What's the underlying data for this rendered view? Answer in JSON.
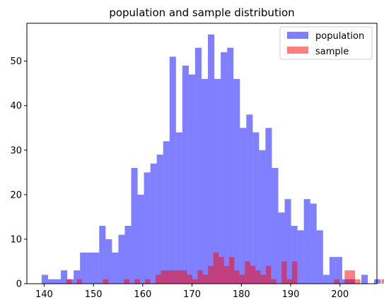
{
  "chart_data": {
    "type": "histogram",
    "title": "population and sample distribution",
    "xlabel": "",
    "ylabel": "",
    "xlim": [
      136.5,
      207.5
    ],
    "ylim": [
      0,
      58.5
    ],
    "xticks": [
      140,
      150,
      160,
      170,
      180,
      190,
      200
    ],
    "yticks": [
      0,
      10,
      20,
      30,
      40,
      50
    ],
    "legend_position": "top-right",
    "series": [
      {
        "name": "population",
        "color": "#0000ff",
        "opacity": 0.5,
        "bin_start": 139.5,
        "bin_width": 1.297,
        "counts": [
          2,
          1,
          1,
          3,
          1,
          3,
          7,
          7,
          7,
          13,
          10,
          7,
          11,
          13,
          26,
          20,
          25,
          27,
          29,
          32,
          51,
          34,
          49,
          47,
          53,
          46,
          56,
          46,
          52,
          53,
          46,
          35,
          38,
          34,
          30,
          35,
          26,
          16,
          19,
          13,
          12,
          19,
          18,
          12,
          2,
          6,
          6,
          1,
          1,
          0,
          2,
          0,
          1,
          0,
          0,
          1
        ]
      },
      {
        "name": "sample",
        "color": "#ff0000",
        "opacity": 0.5,
        "bin_start": 144.5,
        "bin_width": 1.065,
        "counts": [
          1,
          0,
          1,
          0,
          0,
          0,
          0,
          1,
          0,
          0,
          0,
          1,
          0,
          1,
          0,
          1,
          0,
          2,
          3,
          3,
          3,
          3,
          3,
          2,
          1,
          3,
          2,
          4,
          7,
          6,
          4,
          6,
          3,
          2,
          5,
          4,
          3,
          2,
          4,
          1,
          0,
          5,
          1,
          5,
          0,
          0,
          0,
          0,
          0,
          0,
          0,
          1,
          0,
          3,
          3,
          1,
          0,
          0,
          0,
          0,
          1,
          0,
          0,
          0,
          0,
          0,
          0
        ]
      }
    ]
  }
}
